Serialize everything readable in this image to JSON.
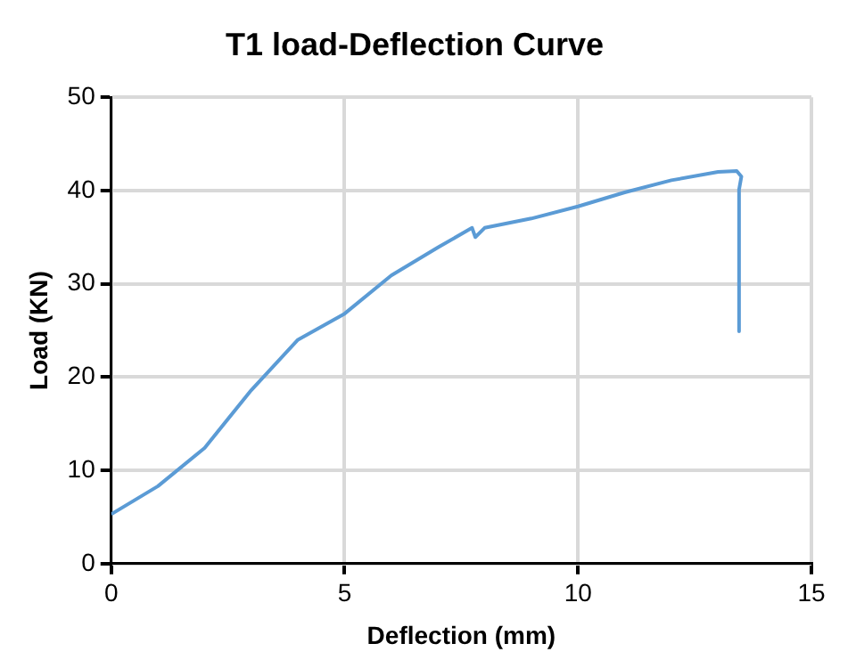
{
  "chart_data": {
    "type": "line",
    "title": "T1 load-Deflection Curve",
    "xlabel": "Deflection (mm)",
    "ylabel": "Load (KN)",
    "series": [
      {
        "color": "#5b9bd5",
        "x": [
          0,
          1,
          2,
          3,
          4,
          5,
          6,
          7,
          7.73,
          7.8,
          8,
          9,
          10,
          11,
          12,
          13,
          13.4,
          13.5,
          13.45,
          13.45
        ],
        "values": [
          5.3,
          8.3,
          12.4,
          18.6,
          24,
          26.8,
          30.9,
          33.9,
          36,
          35,
          36,
          37,
          38.3,
          39.8,
          41.1,
          42,
          42.1,
          41.5,
          40.1,
          24.9
        ]
      }
    ],
    "xlim": [
      0,
      15
    ],
    "xticks": [
      0,
      5,
      10,
      15
    ],
    "ylim": [
      0,
      50
    ],
    "yticks": [
      0,
      10,
      20,
      30,
      40,
      50
    ],
    "grid": true,
    "legend": false,
    "marker": "none",
    "line_style": "solid"
  }
}
